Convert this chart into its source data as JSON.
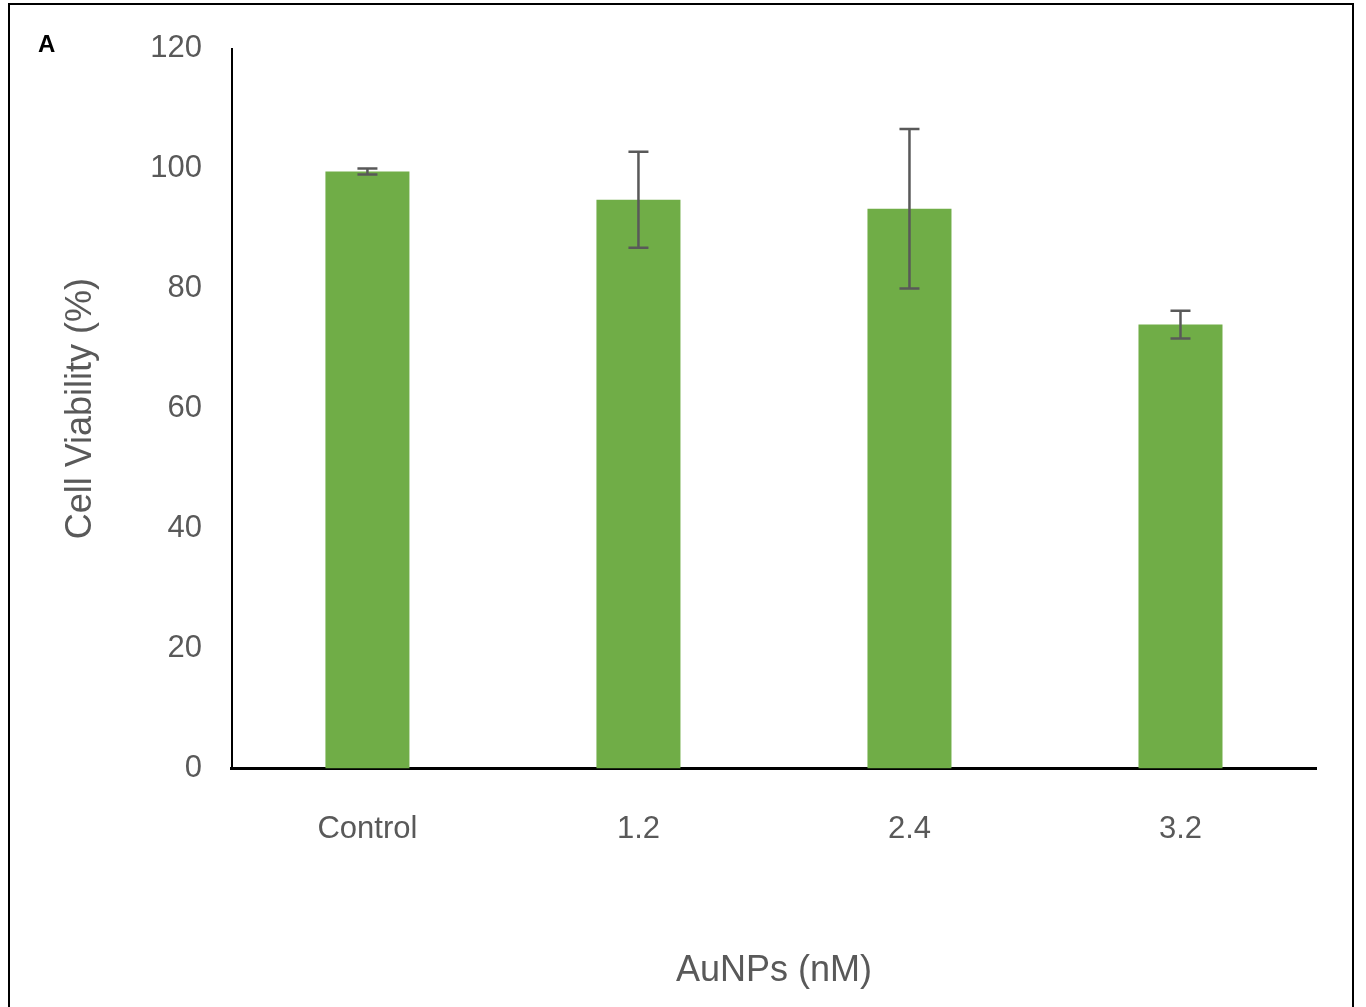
{
  "chart_data": {
    "type": "bar",
    "xlabel": "AuNPs (nM)",
    "ylabel": "Cell Viability (%)",
    "annotations": [
      "A"
    ],
    "categories": [
      "Control",
      "1.2",
      "2.4",
      "3.2"
    ],
    "values": [
      99.5,
      94.8,
      93.3,
      74.0
    ],
    "errors": [
      0.5,
      8.0,
      13.3,
      2.3
    ],
    "color": "#70ad47",
    "ylim": [
      0,
      120
    ],
    "yticks": [
      0,
      20,
      40,
      60,
      80,
      100,
      120
    ],
    "grid": false,
    "legend": false
  }
}
